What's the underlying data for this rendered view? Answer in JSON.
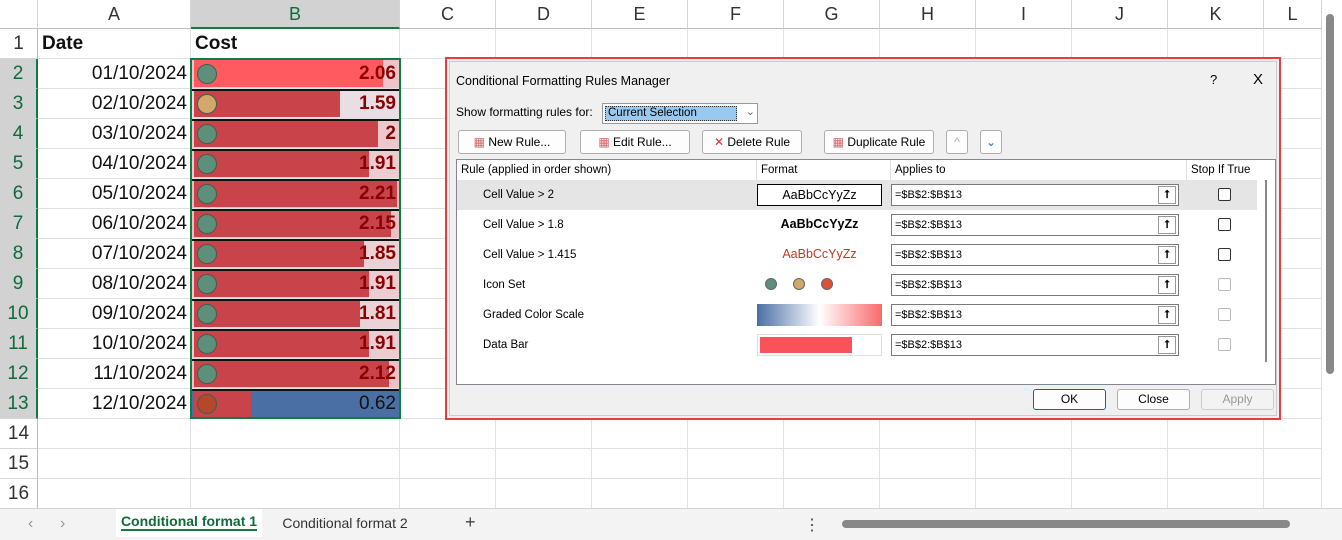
{
  "columns": [
    "A",
    "B",
    "C",
    "D",
    "E",
    "F",
    "G",
    "H",
    "I",
    "J",
    "K",
    "L"
  ],
  "rows": [
    "1",
    "2",
    "3",
    "4",
    "5",
    "6",
    "7",
    "8",
    "9",
    "10",
    "11",
    "12",
    "13",
    "14",
    "15",
    "16"
  ],
  "headers": {
    "a1": "Date",
    "b1": "Cost"
  },
  "data": [
    {
      "date": "01/10/2024",
      "cost": "2.06",
      "icon": "green"
    },
    {
      "date": "02/10/2024",
      "cost": "1.59",
      "icon": "yellow"
    },
    {
      "date": "03/10/2024",
      "cost": "2",
      "icon": "green"
    },
    {
      "date": "04/10/2024",
      "cost": "1.91",
      "icon": "green"
    },
    {
      "date": "05/10/2024",
      "cost": "2.21",
      "icon": "green"
    },
    {
      "date": "06/10/2024",
      "cost": "2.15",
      "icon": "green"
    },
    {
      "date": "07/10/2024",
      "cost": "1.85",
      "icon": "green"
    },
    {
      "date": "08/10/2024",
      "cost": "1.91",
      "icon": "green"
    },
    {
      "date": "09/10/2024",
      "cost": "1.81",
      "icon": "green"
    },
    {
      "date": "10/10/2024",
      "cost": "1.91",
      "icon": "green"
    },
    {
      "date": "11/10/2024",
      "cost": "2.12",
      "icon": "green"
    },
    {
      "date": "12/10/2024",
      "cost": "0.62",
      "icon": "red"
    }
  ],
  "colors": {
    "green": "#5e8f7a",
    "yellow": "#d3a86a",
    "red": "#b5472a",
    "bar": "#c9434a",
    "bar_top": "#ff5a5f",
    "scale_low": "#4a6fa5",
    "scale_high": "#f8696b",
    "selection": "#107c41"
  },
  "dialog": {
    "title": "Conditional Formatting Rules Manager",
    "help": "?",
    "close": "X",
    "show_label": "Show formatting rules for:",
    "show_value": "Current Selection",
    "buttons": {
      "new": "New Rule...",
      "edit": "Edit Rule...",
      "delete": "Delete Rule",
      "duplicate": "Duplicate Rule"
    },
    "columns": {
      "rule": "Rule (applied in order shown)",
      "format": "Format",
      "applies": "Applies to",
      "stop": "Stop If True"
    },
    "rules": [
      {
        "name": "Cell Value > 2",
        "preview": "AaBbCcYyZz",
        "applies": "=$B$2:$B$13"
      },
      {
        "name": "Cell Value > 1.8",
        "preview": "AaBbCcYyZz",
        "applies": "=$B$2:$B$13"
      },
      {
        "name": "Cell Value > 1.415",
        "preview": "AaBbCcYyZz",
        "applies": "=$B$2:$B$13"
      },
      {
        "name": "Icon Set",
        "preview": "",
        "applies": "=$B$2:$B$13"
      },
      {
        "name": "Graded Color Scale",
        "preview": "",
        "applies": "=$B$2:$B$13"
      },
      {
        "name": "Data Bar",
        "preview": "",
        "applies": "=$B$2:$B$13"
      }
    ],
    "ok": "OK",
    "close_btn": "Close",
    "apply": "Apply"
  },
  "sheets": [
    {
      "label": "Conditional format 1",
      "active": true
    },
    {
      "label": "Conditional format 2",
      "active": false
    }
  ],
  "add_sheet": "+"
}
